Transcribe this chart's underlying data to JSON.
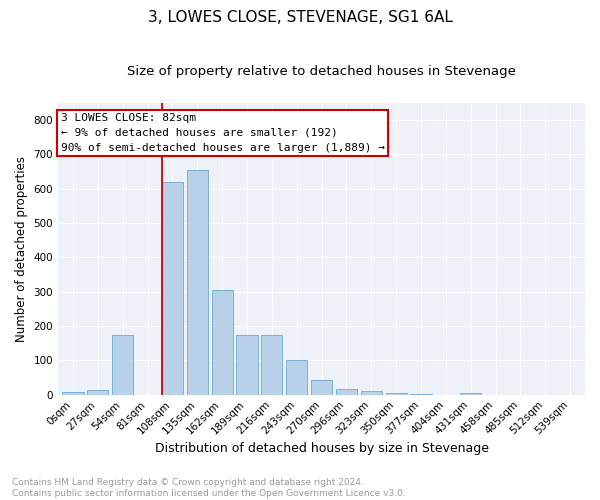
{
  "title": "3, LOWES CLOSE, STEVENAGE, SG1 6AL",
  "subtitle": "Size of property relative to detached houses in Stevenage",
  "xlabel": "Distribution of detached houses by size in Stevenage",
  "ylabel": "Number of detached properties",
  "categories": [
    "0sqm",
    "27sqm",
    "54sqm",
    "81sqm",
    "108sqm",
    "135sqm",
    "162sqm",
    "189sqm",
    "216sqm",
    "243sqm",
    "270sqm",
    "296sqm",
    "323sqm",
    "350sqm",
    "377sqm",
    "404sqm",
    "431sqm",
    "458sqm",
    "485sqm",
    "512sqm",
    "539sqm"
  ],
  "values": [
    8,
    15,
    175,
    0,
    620,
    655,
    305,
    175,
    175,
    100,
    42,
    18,
    12,
    5,
    2,
    0,
    5,
    0,
    0,
    0,
    0
  ],
  "bar_color": "#b8d0e8",
  "bar_edge_color": "#6aaad4",
  "annotation_box_text": "3 LOWES CLOSE: 82sqm\n← 9% of detached houses are smaller (192)\n90% of semi-detached houses are larger (1,889) →",
  "annotation_box_color": "#ffffff",
  "annotation_box_edge_color": "#cc0000",
  "annotation_line_color": "#cc0000",
  "ylim": [
    0,
    850
  ],
  "yticks": [
    0,
    100,
    200,
    300,
    400,
    500,
    600,
    700,
    800
  ],
  "background_color": "#eef2f8",
  "grid_color": "#ffffff",
  "footer_text": "Contains HM Land Registry data © Crown copyright and database right 2024.\nContains public sector information licensed under the Open Government Licence v3.0.",
  "title_fontsize": 11,
  "subtitle_fontsize": 9.5,
  "xlabel_fontsize": 9,
  "ylabel_fontsize": 8.5,
  "tick_fontsize": 7.5,
  "footer_fontsize": 6.5,
  "annotation_fontsize": 8
}
